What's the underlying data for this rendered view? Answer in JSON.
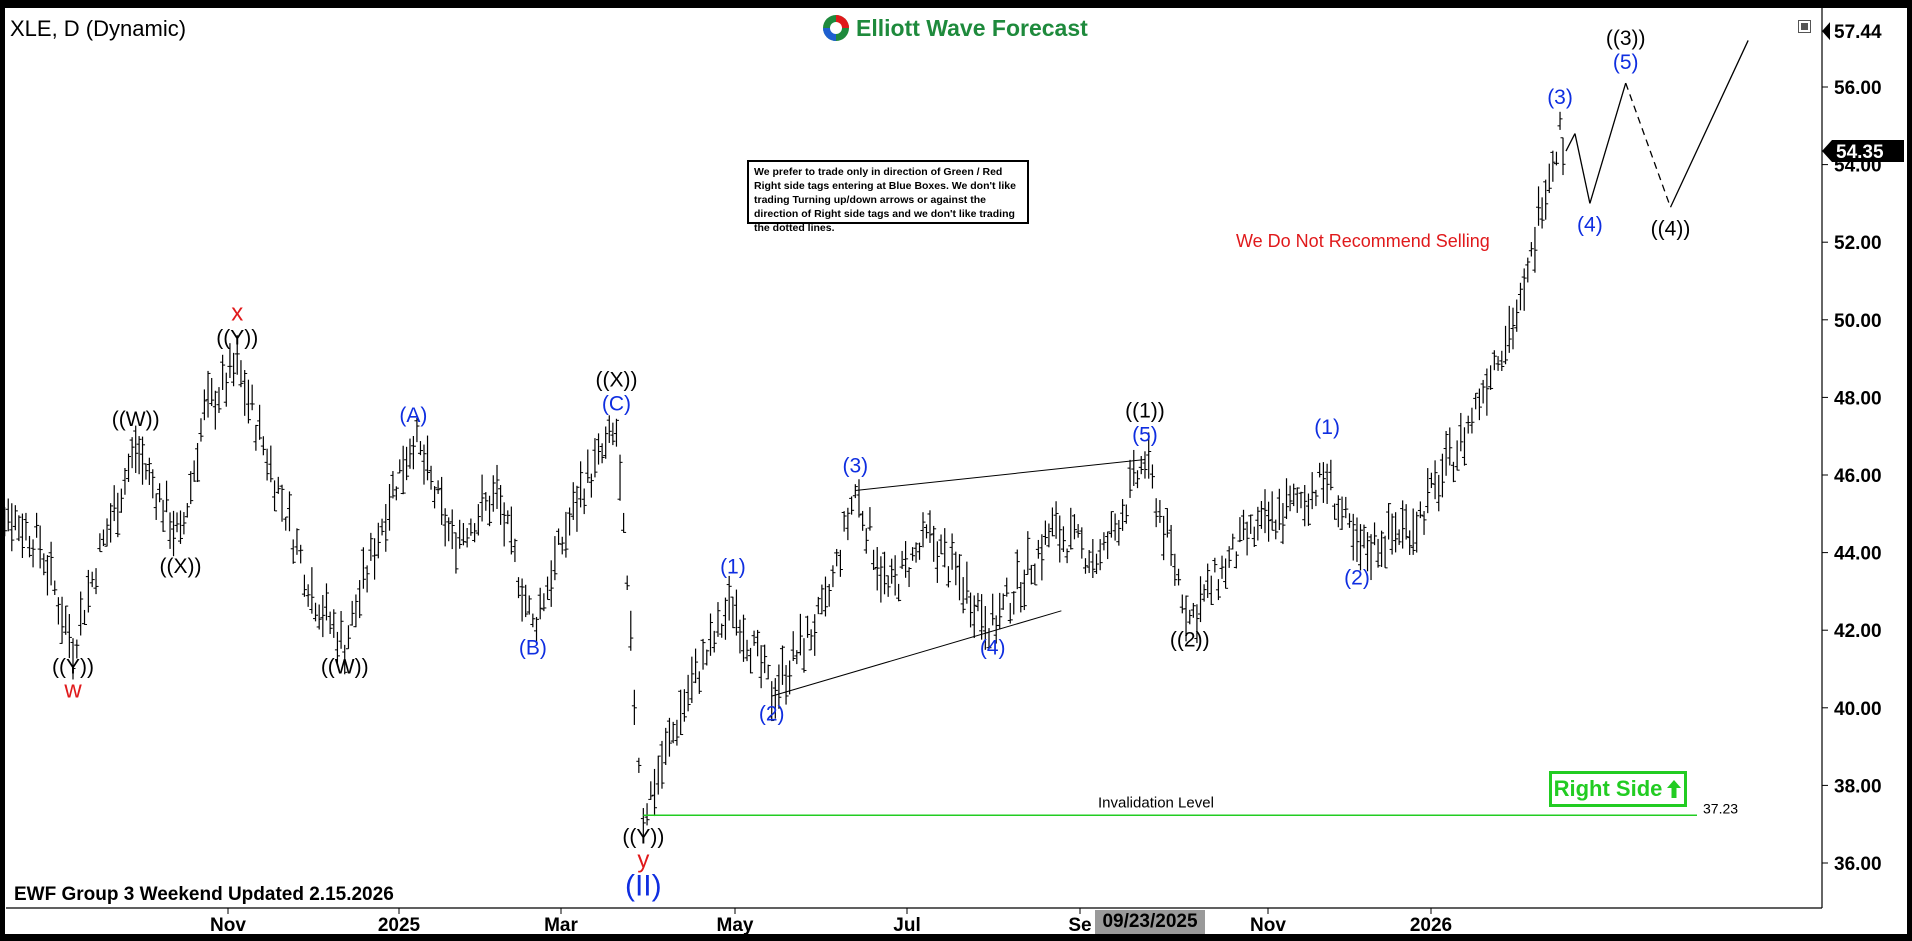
{
  "header": {
    "symbol_title": "XLE, D (Dynamic)",
    "logo_text": "Elliott Wave Forecast"
  },
  "note_box": {
    "text": "We prefer to trade only in direction of Green / Red Right side tags entering at Blue Boxes. We don't like trading Turning up/down arrows or against the direction of Right side tags and we don't like trading the dotted lines."
  },
  "recommendation": "We Do Not Recommend Selling",
  "right_side_tag": "Right Side",
  "footer": {
    "updated_text": "EWF Group 3 Weekend Updated 2.15.2026",
    "current_date_label": "09/23/2025"
  },
  "colors": {
    "wave_blue": "#0f2ee0",
    "label_red": "#e0191b",
    "invalidation_green": "#22cc22",
    "bar_black": "#000000",
    "logo_green": "#1e8a3c"
  },
  "chart_data": {
    "type": "ohlc",
    "title": "XLE, D (Dynamic)",
    "ylim": [
      35,
      57.8
    ],
    "y_ticks": [
      36,
      38,
      40,
      42,
      44,
      46,
      48,
      50,
      52,
      54,
      56
    ],
    "x_tick_labels": [
      "Nov",
      "2025",
      "Mar",
      "May",
      "Jul",
      "Se",
      "Nov",
      "2026"
    ],
    "last_price": 54.35,
    "top_price_label": 57.44,
    "invalidation": {
      "label": "Invalidation Level",
      "value": 37.23
    },
    "price_path": [
      [
        "2024-09-01",
        45.7
      ],
      [
        "2024-09-20",
        44.2
      ],
      [
        "2024-10-01",
        41.6
      ],
      [
        "2024-10-10",
        44.0
      ],
      [
        "2024-10-22",
        46.7
      ],
      [
        "2024-10-30",
        45.4
      ],
      [
        "2024-11-06",
        44.3
      ],
      [
        "2024-11-14",
        47.6
      ],
      [
        "2024-11-25",
        48.8
      ],
      [
        "2024-12-05",
        46.5
      ],
      [
        "2024-12-20",
        43.0
      ],
      [
        "2024-12-31",
        41.6
      ],
      [
        "2025-01-15",
        45.4
      ],
      [
        "2025-01-23",
        47.0
      ],
      [
        "2025-02-05",
        44.3
      ],
      [
        "2025-02-20",
        45.5
      ],
      [
        "2025-03-04",
        42.1
      ],
      [
        "2025-03-20",
        45.6
      ],
      [
        "2025-04-01",
        47.1
      ],
      [
        "2025-04-07",
        40.2
      ],
      [
        "2025-04-10",
        37.23
      ],
      [
        "2025-04-25",
        40.4
      ],
      [
        "2025-05-10",
        42.7
      ],
      [
        "2025-05-23",
        40.4
      ],
      [
        "2025-06-10",
        42.5
      ],
      [
        "2025-06-20",
        45.6
      ],
      [
        "2025-07-01",
        43.0
      ],
      [
        "2025-07-15",
        44.4
      ],
      [
        "2025-08-05",
        42.1
      ],
      [
        "2025-08-25",
        44.6
      ],
      [
        "2025-09-10",
        43.8
      ],
      [
        "2025-09-25",
        46.4
      ],
      [
        "2025-10-10",
        42.3
      ],
      [
        "2025-10-28",
        44.3
      ],
      [
        "2025-11-15",
        45.3
      ],
      [
        "2025-11-25",
        45.9
      ],
      [
        "2025-12-05",
        44.0
      ],
      [
        "2025-12-25",
        44.8
      ],
      [
        "2026-01-10",
        47.0
      ],
      [
        "2026-01-20",
        49.0
      ],
      [
        "2026-01-30",
        50.5
      ],
      [
        "2026-02-05",
        53.2
      ],
      [
        "2026-02-11",
        54.9
      ],
      [
        "2026-02-13",
        54.35
      ]
    ],
    "projection": [
      {
        "from": [
          "2026-02-13",
          54.35
        ],
        "to": [
          "2026-02-16",
          54.8
        ],
        "style": "solid"
      },
      {
        "from": [
          "2026-02-16",
          54.8
        ],
        "to": [
          "2026-02-21",
          53.0
        ],
        "style": "solid"
      },
      {
        "from": [
          "2026-02-21",
          53.0
        ],
        "to": [
          "2026-03-05",
          56.1
        ],
        "style": "solid"
      },
      {
        "from": [
          "2026-03-05",
          56.1
        ],
        "to": [
          "2026-03-20",
          52.9
        ],
        "style": "dashed"
      },
      {
        "from": [
          "2026-03-20",
          52.9
        ],
        "to": [
          "2026-04-15",
          57.2
        ],
        "style": "solid"
      }
    ],
    "wave_labels": [
      {
        "text": "((Y))",
        "date": "2024-10-01",
        "price": 41.6,
        "pos": "below",
        "color": "black"
      },
      {
        "text": "w",
        "date": "2024-10-01",
        "price": 41.6,
        "pos": "below2",
        "color": "red"
      },
      {
        "text": "((W))",
        "date": "2024-10-22",
        "price": 46.9,
        "pos": "above",
        "color": "black"
      },
      {
        "text": "((X))",
        "date": "2024-11-06",
        "price": 44.2,
        "pos": "below",
        "color": "black"
      },
      {
        "text": "((Y))",
        "date": "2024-11-25",
        "price": 49.0,
        "pos": "above",
        "color": "black"
      },
      {
        "text": "x",
        "date": "2024-11-25",
        "price": 49.0,
        "pos": "above2",
        "color": "red"
      },
      {
        "text": "((W))",
        "date": "2024-12-31",
        "price": 41.6,
        "pos": "below",
        "color": "black"
      },
      {
        "text": "(A)",
        "date": "2025-01-23",
        "price": 47.0,
        "pos": "above",
        "color": "blue"
      },
      {
        "text": "(B)",
        "date": "2025-03-04",
        "price": 42.1,
        "pos": "below",
        "color": "blue"
      },
      {
        "text": "(C)",
        "date": "2025-04-01",
        "price": 47.3,
        "pos": "above",
        "color": "blue"
      },
      {
        "text": "((X))",
        "date": "2025-04-01",
        "price": 47.3,
        "pos": "above2",
        "color": "black"
      },
      {
        "text": "((Y))",
        "date": "2025-04-10",
        "price": 37.23,
        "pos": "below",
        "color": "black"
      },
      {
        "text": "y",
        "date": "2025-04-10",
        "price": 37.23,
        "pos": "below2",
        "color": "red"
      },
      {
        "text": "(II)",
        "date": "2025-04-10",
        "price": 37.23,
        "pos": "below3",
        "color": "blue"
      },
      {
        "text": "(1)",
        "date": "2025-05-10",
        "price": 43.1,
        "pos": "above",
        "color": "blue"
      },
      {
        "text": "(2)",
        "date": "2025-05-23",
        "price": 40.4,
        "pos": "below",
        "color": "blue"
      },
      {
        "text": "(3)",
        "date": "2025-06-20",
        "price": 45.7,
        "pos": "above",
        "color": "blue"
      },
      {
        "text": "(4)",
        "date": "2025-08-05",
        "price": 42.1,
        "pos": "below",
        "color": "blue"
      },
      {
        "text": "(5)",
        "date": "2025-09-25",
        "price": 46.5,
        "pos": "above",
        "color": "blue"
      },
      {
        "text": "((1))",
        "date": "2025-09-25",
        "price": 46.5,
        "pos": "above2",
        "color": "black"
      },
      {
        "text": "((2))",
        "date": "2025-10-10",
        "price": 42.3,
        "pos": "below",
        "color": "black"
      },
      {
        "text": "(1)",
        "date": "2025-11-25",
        "price": 46.7,
        "pos": "above",
        "color": "blue"
      },
      {
        "text": "(2)",
        "date": "2025-12-05",
        "price": 43.9,
        "pos": "below",
        "color": "blue"
      },
      {
        "text": "(3)",
        "date": "2026-02-11",
        "price": 55.2,
        "pos": "above",
        "color": "blue"
      },
      {
        "text": "(4)",
        "date": "2026-02-21",
        "price": 53.0,
        "pos": "below",
        "color": "blue"
      },
      {
        "text": "(5)",
        "date": "2026-03-05",
        "price": 56.1,
        "pos": "above",
        "color": "blue"
      },
      {
        "text": "((3))",
        "date": "2026-03-05",
        "price": 56.1,
        "pos": "above2",
        "color": "black"
      },
      {
        "text": "((4))",
        "date": "2026-03-20",
        "price": 52.9,
        "pos": "below",
        "color": "black"
      }
    ],
    "trend_lines": [
      {
        "from": [
          "2025-06-20",
          45.6
        ],
        "to": [
          "2025-09-25",
          46.4
        ]
      },
      {
        "from": [
          "2025-05-23",
          40.3
        ],
        "to": [
          "2025-08-28",
          42.5
        ]
      }
    ],
    "grid": false,
    "legend": "none"
  }
}
